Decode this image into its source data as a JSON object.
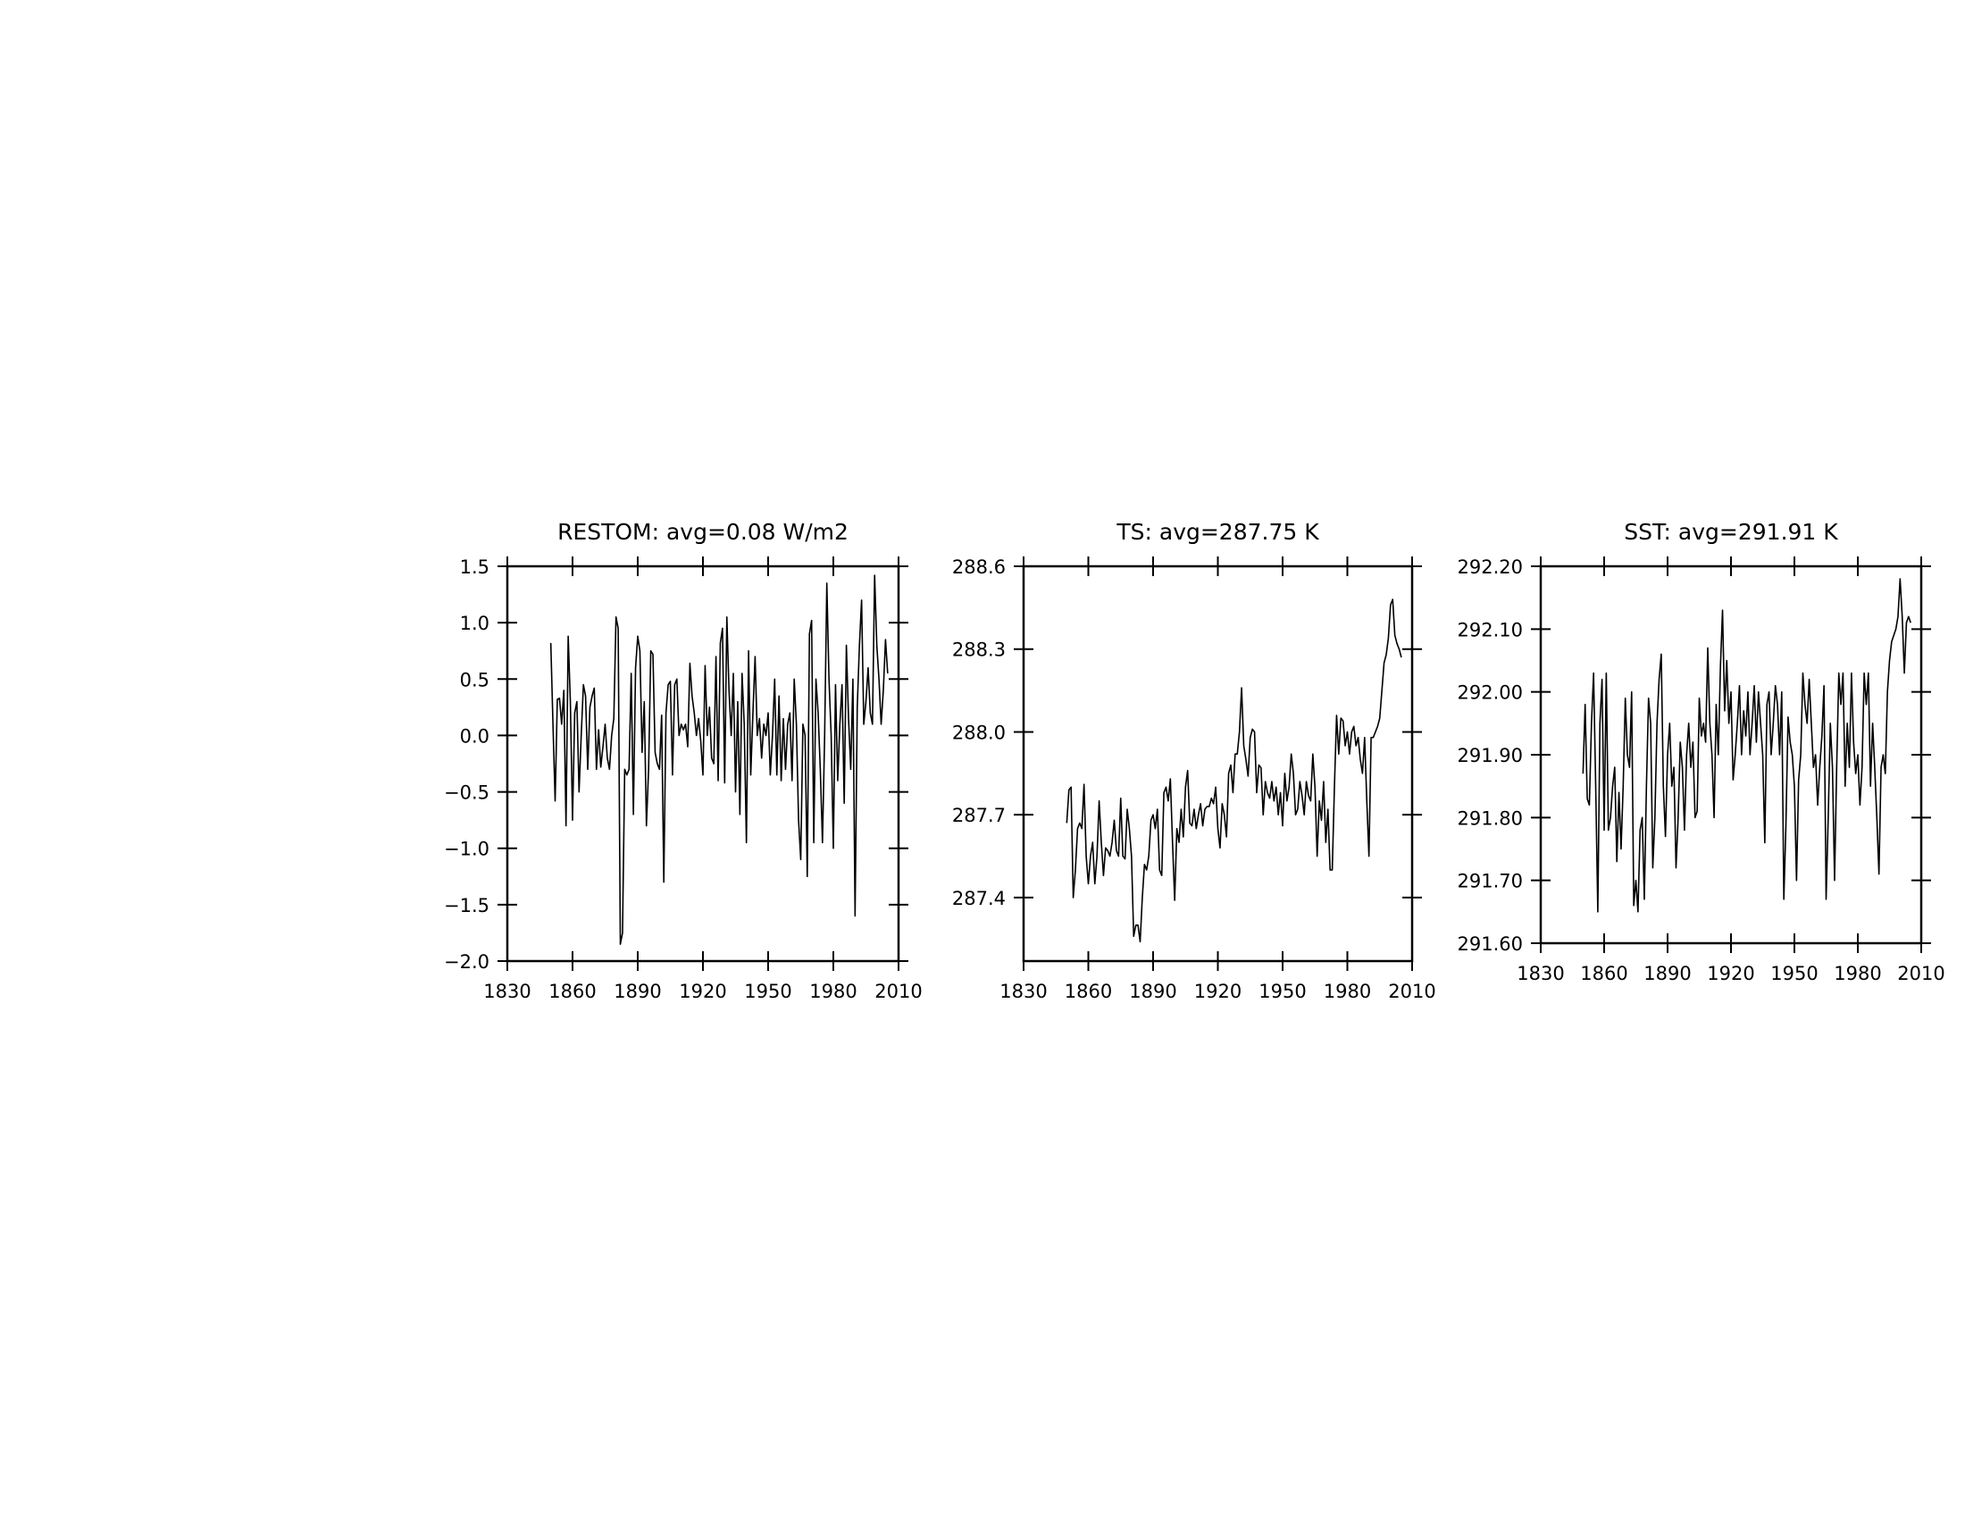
{
  "chart_data": [
    {
      "type": "line",
      "title": "RESTOM: avg=0.08 W/m2",
      "x": [
        1850,
        1851,
        1852,
        1853,
        1854,
        1855,
        1856,
        1857,
        1858,
        1859,
        1860,
        1861,
        1862,
        1863,
        1864,
        1865,
        1866,
        1867,
        1868,
        1869,
        1870,
        1871,
        1872,
        1873,
        1874,
        1875,
        1876,
        1877,
        1878,
        1879,
        1880,
        1881,
        1882,
        1883,
        1884,
        1885,
        1886,
        1887,
        1888,
        1889,
        1890,
        1891,
        1892,
        1893,
        1894,
        1895,
        1896,
        1897,
        1898,
        1899,
        1900,
        1901,
        1902,
        1903,
        1904,
        1905,
        1906,
        1907,
        1908,
        1909,
        1910,
        1911,
        1912,
        1913,
        1914,
        1915,
        1916,
        1917,
        1918,
        1919,
        1920,
        1921,
        1922,
        1923,
        1924,
        1925,
        1926,
        1927,
        1928,
        1929,
        1930,
        1931,
        1932,
        1933,
        1934,
        1935,
        1936,
        1937,
        1938,
        1939,
        1940,
        1941,
        1942,
        1943,
        1944,
        1945,
        1946,
        1947,
        1948,
        1949,
        1950,
        1951,
        1952,
        1953,
        1954,
        1955,
        1956,
        1957,
        1958,
        1959,
        1960,
        1961,
        1962,
        1963,
        1964,
        1965,
        1966,
        1967,
        1968,
        1969,
        1970,
        1971,
        1972,
        1973,
        1974,
        1975,
        1976,
        1977,
        1978,
        1979,
        1980,
        1981,
        1982,
        1983,
        1984,
        1985,
        1986,
        1987,
        1988,
        1989,
        1990,
        1991,
        1992,
        1993,
        1994,
        1995,
        1996,
        1997,
        1998,
        1999,
        2000,
        2001,
        2002,
        2003,
        2004,
        2005
      ],
      "values": [
        0.82,
        0.1,
        -0.58,
        0.32,
        0.33,
        0.1,
        0.4,
        -0.8,
        0.88,
        0.3,
        -0.75,
        0.2,
        0.3,
        -0.5,
        0.0,
        0.45,
        0.35,
        -0.3,
        0.25,
        0.35,
        0.42,
        -0.3,
        0.05,
        -0.28,
        -0.1,
        0.1,
        -0.2,
        -0.3,
        0.0,
        0.15,
        1.05,
        0.95,
        -1.85,
        -1.75,
        -0.3,
        -0.35,
        -0.3,
        0.55,
        -0.7,
        0.6,
        0.88,
        0.75,
        -0.15,
        0.3,
        -0.8,
        -0.3,
        0.75,
        0.72,
        -0.15,
        -0.25,
        -0.3,
        0.18,
        -1.3,
        0.2,
        0.45,
        0.48,
        -0.35,
        0.45,
        0.5,
        0.0,
        0.1,
        0.05,
        0.1,
        -0.1,
        0.64,
        0.35,
        0.2,
        0.0,
        0.15,
        -0.05,
        -0.35,
        0.62,
        0.0,
        0.25,
        -0.2,
        -0.25,
        0.7,
        -0.4,
        0.82,
        0.95,
        -0.42,
        1.05,
        0.4,
        0.0,
        0.55,
        -0.5,
        0.3,
        -0.7,
        0.55,
        0.1,
        -0.95,
        0.75,
        -0.35,
        0.2,
        0.7,
        0.0,
        0.15,
        -0.2,
        0.1,
        0.0,
        0.2,
        -0.35,
        0.0,
        0.5,
        -0.35,
        0.35,
        -0.4,
        0.15,
        -0.3,
        0.1,
        0.2,
        -0.4,
        0.5,
        0.1,
        -0.75,
        -1.1,
        0.1,
        0.0,
        -1.25,
        0.9,
        1.02,
        -0.95,
        0.5,
        0.2,
        -0.3,
        -0.95,
        0.0,
        1.35,
        0.5,
        0.0,
        -1.0,
        0.45,
        -0.4,
        0.1,
        0.45,
        -0.6,
        0.8,
        0.15,
        -0.3,
        0.5,
        -1.6,
        0.25,
        0.8,
        1.2,
        0.1,
        0.3,
        0.6,
        0.2,
        0.1,
        1.42,
        0.8,
        0.5,
        0.1,
        0.4,
        0.85,
        0.55
      ],
      "color": "#000000",
      "xlim": [
        1830,
        2010
      ],
      "xticks": [
        1830,
        1860,
        1890,
        1920,
        1950,
        1980,
        2010
      ],
      "ylim": [
        -2,
        1.5
      ],
      "yticks": [
        1.5,
        {
          "value": 1,
          "label": "1.0"
        },
        0.5,
        {
          "value": 0,
          "label": "0.0"
        },
        {
          "value": -0.5,
          "label": "−0.5"
        },
        {
          "value": -1,
          "label": "−1.0"
        },
        {
          "value": -1.5,
          "label": "−1.5"
        },
        {
          "value": -2,
          "label": "−2.0"
        }
      ]
    },
    {
      "type": "line",
      "title": "TS: avg=287.75 K",
      "x": [
        1850,
        1851,
        1852,
        1853,
        1854,
        1855,
        1856,
        1857,
        1858,
        1859,
        1860,
        1861,
        1862,
        1863,
        1864,
        1865,
        1866,
        1867,
        1868,
        1869,
        1870,
        1871,
        1872,
        1873,
        1874,
        1875,
        1876,
        1877,
        1878,
        1879,
        1880,
        1881,
        1882,
        1883,
        1884,
        1885,
        1886,
        1887,
        1888,
        1889,
        1890,
        1891,
        1892,
        1893,
        1894,
        1895,
        1896,
        1897,
        1898,
        1899,
        1900,
        1901,
        1902,
        1903,
        1904,
        1905,
        1906,
        1907,
        1908,
        1909,
        1910,
        1911,
        1912,
        1913,
        1914,
        1915,
        1916,
        1917,
        1918,
        1919,
        1920,
        1921,
        1922,
        1923,
        1924,
        1925,
        1926,
        1927,
        1928,
        1929,
        1930,
        1931,
        1932,
        1933,
        1934,
        1935,
        1936,
        1937,
        1938,
        1939,
        1940,
        1941,
        1942,
        1943,
        1944,
        1945,
        1946,
        1947,
        1948,
        1949,
        1950,
        1951,
        1952,
        1953,
        1954,
        1955,
        1956,
        1957,
        1958,
        1959,
        1960,
        1961,
        1962,
        1963,
        1964,
        1965,
        1966,
        1967,
        1968,
        1969,
        1970,
        1971,
        1972,
        1973,
        1974,
        1975,
        1976,
        1977,
        1978,
        1979,
        1980,
        1981,
        1982,
        1983,
        1984,
        1985,
        1986,
        1987,
        1988,
        1989,
        1990,
        1991,
        1992,
        1993,
        1994,
        1995,
        1996,
        1997,
        1998,
        1999,
        2000,
        2001,
        2002,
        2003,
        2004,
        2005
      ],
      "values": [
        287.67,
        287.79,
        287.8,
        287.4,
        287.5,
        287.65,
        287.67,
        287.65,
        287.81,
        287.55,
        287.45,
        287.55,
        287.6,
        287.45,
        287.55,
        287.75,
        287.6,
        287.48,
        287.58,
        287.57,
        287.55,
        287.6,
        287.68,
        287.57,
        287.55,
        287.76,
        287.55,
        287.54,
        287.72,
        287.65,
        287.55,
        287.26,
        287.3,
        287.3,
        287.24,
        287.4,
        287.52,
        287.5,
        287.55,
        287.68,
        287.7,
        287.65,
        287.72,
        287.5,
        287.48,
        287.78,
        287.8,
        287.75,
        287.83,
        287.6,
        287.39,
        287.65,
        287.6,
        287.72,
        287.62,
        287.8,
        287.86,
        287.67,
        287.66,
        287.72,
        287.65,
        287.7,
        287.74,
        287.66,
        287.72,
        287.73,
        287.73,
        287.76,
        287.74,
        287.8,
        287.65,
        287.58,
        287.74,
        287.7,
        287.62,
        287.85,
        287.88,
        287.78,
        287.92,
        287.92,
        288.0,
        288.16,
        287.95,
        287.9,
        287.84,
        287.98,
        288.01,
        288.0,
        287.78,
        287.88,
        287.87,
        287.7,
        287.82,
        287.78,
        287.76,
        287.82,
        287.75,
        287.8,
        287.7,
        287.78,
        287.66,
        287.85,
        287.75,
        287.8,
        287.92,
        287.85,
        287.7,
        287.72,
        287.82,
        287.77,
        287.7,
        287.82,
        287.77,
        287.75,
        287.92,
        287.8,
        287.55,
        287.75,
        287.68,
        287.82,
        287.6,
        287.72,
        287.5,
        287.5,
        287.8,
        288.06,
        287.92,
        288.05,
        288.04,
        287.95,
        288.0,
        287.92,
        288.0,
        288.02,
        287.95,
        287.98,
        287.9,
        287.85,
        287.98,
        287.75,
        287.55,
        287.98,
        287.98,
        288.0,
        288.02,
        288.05,
        288.15,
        288.25,
        288.28,
        288.34,
        288.46,
        288.48,
        288.35,
        288.32,
        288.3,
        288.27
      ],
      "color": "#000000",
      "xlim": [
        1830,
        2010
      ],
      "xticks": [
        1830,
        1860,
        1890,
        1920,
        1950,
        1980,
        2010
      ],
      "ylim": [
        287.17,
        288.6
      ],
      "yticks": [
        288.6,
        288.3,
        {
          "value": 288,
          "label": "288.0"
        },
        287.7,
        287.4
      ]
    },
    {
      "type": "line",
      "title": "SST: avg=291.91 K",
      "x": [
        1850,
        1851,
        1852,
        1853,
        1854,
        1855,
        1856,
        1857,
        1858,
        1859,
        1860,
        1861,
        1862,
        1863,
        1864,
        1865,
        1866,
        1867,
        1868,
        1869,
        1870,
        1871,
        1872,
        1873,
        1874,
        1875,
        1876,
        1877,
        1878,
        1879,
        1880,
        1881,
        1882,
        1883,
        1884,
        1885,
        1886,
        1887,
        1888,
        1889,
        1890,
        1891,
        1892,
        1893,
        1894,
        1895,
        1896,
        1897,
        1898,
        1899,
        1900,
        1901,
        1902,
        1903,
        1904,
        1905,
        1906,
        1907,
        1908,
        1909,
        1910,
        1911,
        1912,
        1913,
        1914,
        1915,
        1916,
        1917,
        1918,
        1919,
        1920,
        1921,
        1922,
        1923,
        1924,
        1925,
        1926,
        1927,
        1928,
        1929,
        1930,
        1931,
        1932,
        1933,
        1934,
        1935,
        1936,
        1937,
        1938,
        1939,
        1940,
        1941,
        1942,
        1943,
        1944,
        1945,
        1946,
        1947,
        1948,
        1949,
        1950,
        1951,
        1952,
        1953,
        1954,
        1955,
        1956,
        1957,
        1958,
        1959,
        1960,
        1961,
        1962,
        1963,
        1964,
        1965,
        1966,
        1967,
        1968,
        1969,
        1970,
        1971,
        1972,
        1973,
        1974,
        1975,
        1976,
        1977,
        1978,
        1979,
        1980,
        1981,
        1982,
        1983,
        1984,
        1985,
        1986,
        1987,
        1988,
        1989,
        1990,
        1991,
        1992,
        1993,
        1994,
        1995,
        1996,
        1997,
        1998,
        1999,
        2000,
        2001,
        2002,
        2003,
        2004,
        2005
      ],
      "values": [
        291.87,
        291.98,
        291.83,
        291.82,
        291.95,
        292.03,
        291.85,
        291.65,
        291.95,
        292.02,
        291.78,
        292.03,
        291.78,
        291.8,
        291.85,
        291.88,
        291.73,
        291.84,
        291.75,
        291.85,
        291.99,
        291.9,
        291.88,
        292.0,
        291.66,
        291.7,
        291.65,
        291.78,
        291.8,
        291.67,
        291.85,
        291.99,
        291.95,
        291.72,
        291.8,
        291.95,
        292.02,
        292.06,
        291.85,
        291.77,
        291.9,
        291.95,
        291.85,
        291.88,
        291.72,
        291.8,
        291.92,
        291.88,
        291.78,
        291.9,
        291.95,
        291.88,
        291.92,
        291.8,
        291.81,
        291.99,
        291.93,
        291.95,
        291.92,
        292.07,
        291.95,
        291.9,
        291.8,
        291.98,
        291.9,
        292.04,
        292.13,
        291.97,
        292.05,
        291.95,
        292.0,
        291.86,
        291.9,
        291.95,
        292.01,
        291.9,
        291.97,
        291.93,
        292.0,
        291.9,
        291.95,
        292.01,
        291.92,
        292.0,
        291.95,
        291.9,
        291.76,
        291.98,
        292.0,
        291.9,
        291.95,
        292.01,
        291.98,
        291.9,
        292.0,
        291.67,
        291.79,
        291.96,
        291.92,
        291.9,
        291.85,
        291.7,
        291.86,
        291.9,
        292.03,
        291.98,
        291.95,
        292.02,
        291.95,
        291.88,
        291.9,
        291.82,
        291.88,
        291.93,
        292.01,
        291.67,
        291.8,
        291.95,
        291.88,
        291.7,
        291.88,
        292.03,
        291.98,
        292.03,
        291.85,
        291.95,
        291.88,
        292.03,
        291.92,
        291.87,
        291.9,
        291.82,
        291.88,
        292.03,
        291.98,
        292.03,
        291.85,
        291.95,
        291.88,
        291.8,
        291.71,
        291.88,
        291.9,
        291.87,
        292.0,
        292.05,
        292.08,
        292.09,
        292.1,
        292.12,
        292.18,
        292.12,
        292.03,
        292.11,
        292.12,
        292.11
      ],
      "color": "#000000",
      "xlim": [
        1830,
        2010
      ],
      "xticks": [
        1830,
        1860,
        1890,
        1920,
        1950,
        1980,
        2010
      ],
      "ylim": [
        291.6,
        292.2
      ],
      "yticks": [
        {
          "value": 292.2,
          "label": "292.20"
        },
        {
          "value": 292.1,
          "label": "292.10"
        },
        {
          "value": 292,
          "label": "292.00"
        },
        {
          "value": 291.9,
          "label": "291.90"
        },
        {
          "value": 291.8,
          "label": "291.80"
        },
        {
          "value": 291.7,
          "label": "291.70"
        },
        {
          "value": 291.6,
          "label": "291.60"
        }
      ]
    }
  ]
}
